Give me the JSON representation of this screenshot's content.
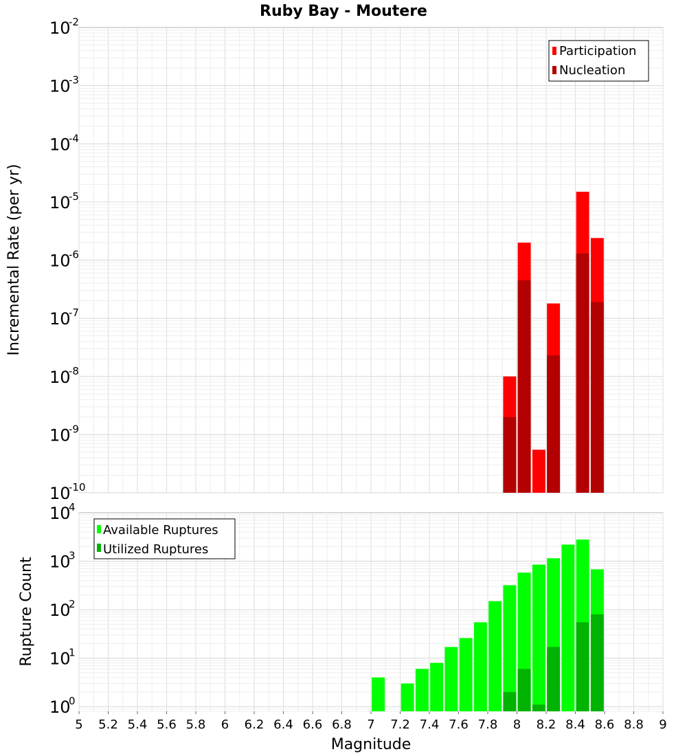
{
  "chart_data": [
    {
      "type": "bar",
      "title": "Ruby Bay - Moutere",
      "xlabel": "Magnitude",
      "ylabel": "Incremental Rate (per yr)",
      "xlim": [
        5,
        9
      ],
      "ylim": [
        1e-10,
        0.01
      ],
      "yscale": "log",
      "grid": true,
      "legend_position": "top-right",
      "x_ticks": [
        "5",
        "5.2",
        "5.4",
        "5.6",
        "5.8",
        "6",
        "6.2",
        "6.4",
        "6.6",
        "6.8",
        "7",
        "7.2",
        "7.4",
        "7.6",
        "7.8",
        "8",
        "8.2",
        "8.4",
        "8.6",
        "8.8",
        "9"
      ],
      "y_tick_exponents": [
        "-2",
        "-3",
        "-4",
        "-5",
        "-6",
        "-7",
        "-8",
        "-9",
        "-10"
      ],
      "x": [
        7.95,
        8.05,
        8.15,
        8.25,
        8.45,
        8.55
      ],
      "series": [
        {
          "name": "Participation",
          "color": "#ff0000",
          "values": [
            1e-08,
            2e-06,
            5.5e-10,
            1.8e-07,
            1.5e-05,
            2.4e-06
          ]
        },
        {
          "name": "Nucleation",
          "color": "#b30000",
          "values": [
            2e-09,
            4.5e-07,
            null,
            2.3e-08,
            1.3e-06,
            1.9e-07
          ]
        }
      ]
    },
    {
      "type": "bar",
      "xlabel": "Magnitude",
      "ylabel": "Rupture Count",
      "xlim": [
        5,
        9
      ],
      "ylim": [
        0.8,
        10000
      ],
      "yscale": "log",
      "grid": true,
      "legend_position": "top-left",
      "y_tick_exponents": [
        "4",
        "3",
        "2",
        "1",
        "0"
      ],
      "x": [
        7.05,
        7.25,
        7.35,
        7.45,
        7.55,
        7.65,
        7.75,
        7.85,
        7.95,
        8.05,
        8.15,
        8.25,
        8.35,
        8.45,
        8.55
      ],
      "series": [
        {
          "name": "Available Ruptures",
          "color": "#00ff00",
          "values": [
            4,
            3,
            6,
            8,
            17,
            26,
            55,
            150,
            320,
            580,
            850,
            1150,
            2200,
            2800,
            680
          ]
        },
        {
          "name": "Utilized Ruptures",
          "color": "#00b300",
          "values": [
            null,
            null,
            null,
            null,
            null,
            null,
            null,
            null,
            2,
            6,
            1.1,
            17,
            null,
            55,
            80
          ]
        }
      ]
    }
  ]
}
